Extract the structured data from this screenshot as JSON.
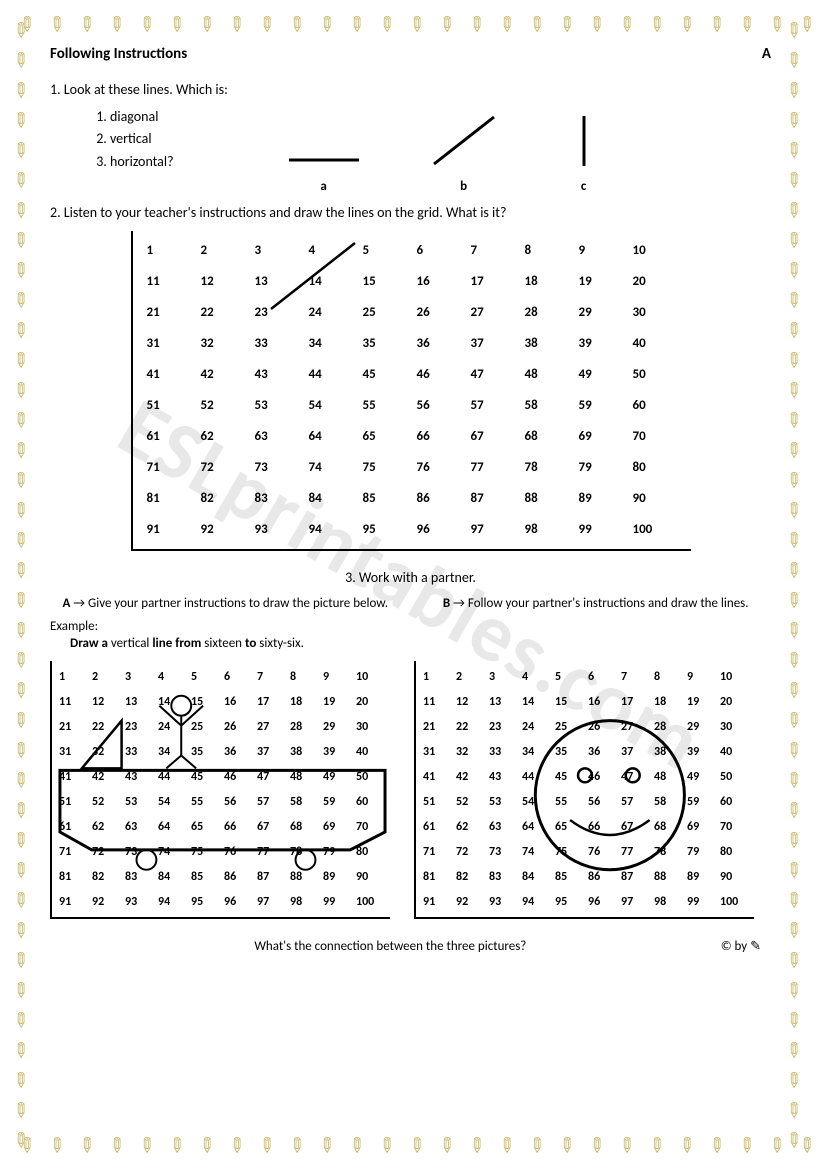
{
  "watermark": "ESLprintables.com",
  "header": {
    "title": "Following Instructions",
    "letter": "A"
  },
  "q1": {
    "prompt": "1. Look at these lines. Which is:",
    "items": [
      "diagonal",
      "vertical",
      "horizontal?"
    ],
    "figures": [
      "a",
      "b",
      "c"
    ]
  },
  "q2": {
    "prompt": "2. Listen to your teacher's instructions and draw the lines on the grid. What is it?",
    "grid": {
      "cols": 10,
      "rows": 10
    },
    "example_line": {
      "from_cell": 23,
      "to_cell": 5
    }
  },
  "q3": {
    "prompt": "3. Work with a partner.",
    "A": {
      "label": "A",
      "text": "Give your partner instructions to draw the picture below."
    },
    "B": {
      "label": "B",
      "text": "Follow your partner's instructions and draw the lines."
    },
    "example_label": "Example:",
    "example_text_parts": [
      "Draw a ",
      "vertical ",
      "line from ",
      "sixteen ",
      "to ",
      "sixty-six."
    ]
  },
  "small_grid": {
    "cols": 10,
    "rows": 10
  },
  "footer": {
    "question": "What's the connection between the three pictures?",
    "copyright": "© by"
  },
  "colors": {
    "text": "#000000",
    "watermark": "#e8e8e8",
    "pencil": "#c9b867",
    "line": "#000000"
  }
}
